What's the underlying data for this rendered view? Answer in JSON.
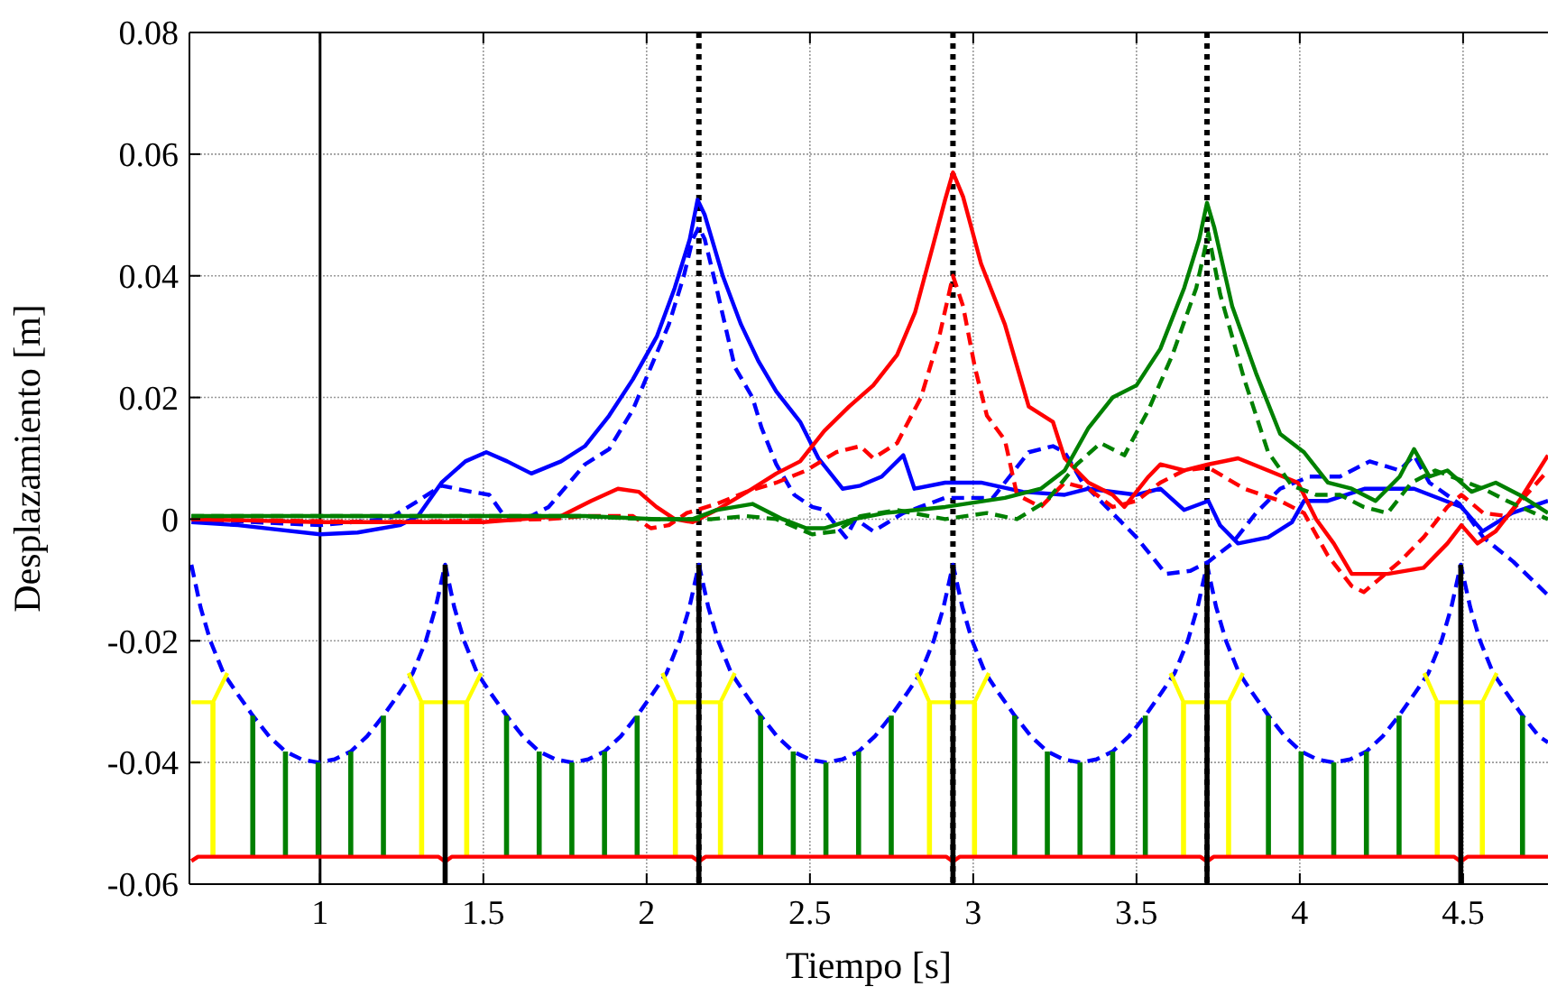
{
  "chart_data": {
    "type": "line",
    "xlabel": "Tiempo [s]",
    "ylabel": "Desplazamiento [m]",
    "xlim": [
      0.6,
      4.76
    ],
    "ylim": [
      -0.06,
      0.08
    ],
    "xticks": [
      1,
      1.5,
      2,
      2.5,
      3,
      3.5,
      4,
      4.5
    ],
    "yticks": [
      -0.06,
      -0.04,
      -0.02,
      0,
      0.02,
      0.04,
      0.06,
      0.08
    ],
    "grid": true,
    "marker": "none",
    "ref_lines": [
      {
        "axis": "x",
        "value": 1,
        "color": "#000000",
        "line_style": "solid"
      },
      {
        "axis": "x",
        "value": 2.16,
        "color": "#000000",
        "line_style": "dotted"
      },
      {
        "axis": "x",
        "value": 2.938,
        "color": "#000000",
        "line_style": "dotted"
      },
      {
        "axis": "x",
        "value": 3.716,
        "color": "#000000",
        "line_style": "dotted"
      }
    ],
    "series": [
      {
        "color": "#0000ff",
        "line_style": "solid",
        "x": [
          0.606,
          0.749,
          1.0,
          1.115,
          1.244,
          1.3,
          1.372,
          1.445,
          1.509,
          1.573,
          1.647,
          1.738,
          1.811,
          1.885,
          1.958,
          2.031,
          2.086,
          2.132,
          2.156,
          2.178,
          2.233,
          2.289,
          2.342,
          2.397,
          2.47,
          2.526,
          2.6,
          2.654,
          2.72,
          2.786,
          2.82,
          2.914,
          3.024,
          3.152,
          3.28,
          3.353,
          3.5,
          3.573,
          3.646,
          3.72,
          3.756,
          3.811,
          3.903,
          3.976,
          4.013,
          4.086,
          4.2,
          4.35,
          4.495,
          4.56,
          4.65,
          4.76
        ],
        "values": [
          -0.0005,
          -0.001,
          -0.0025,
          -0.0022,
          -0.001,
          0.0005,
          0.006,
          0.0095,
          0.011,
          0.0095,
          0.0075,
          0.0095,
          0.012,
          0.017,
          0.023,
          0.03,
          0.038,
          0.046,
          0.0525,
          0.05,
          0.04,
          0.032,
          0.026,
          0.021,
          0.016,
          0.01,
          0.005,
          0.0055,
          0.007,
          0.0105,
          0.005,
          0.006,
          0.006,
          0.0045,
          0.004,
          0.005,
          0.004,
          0.005,
          0.0015,
          0.003,
          -0.001,
          -0.004,
          -0.003,
          -0.0005,
          0.003,
          0.003,
          0.005,
          0.005,
          0.002,
          -0.002,
          0.001,
          0.003
        ]
      },
      {
        "color": "#0000ff",
        "line_style": "dashed",
        "x": [
          0.606,
          1.0,
          1.2,
          1.225,
          1.3,
          1.372,
          1.463,
          1.518,
          1.564,
          1.628,
          1.7,
          1.811,
          1.885,
          1.958,
          2.013,
          2.068,
          2.114,
          2.141,
          2.16,
          2.178,
          2.214,
          2.27,
          2.324,
          2.352,
          2.397,
          2.452,
          2.507,
          2.544,
          2.58,
          2.61,
          2.64,
          2.694,
          2.786,
          2.914,
          3.06,
          3.17,
          3.244,
          3.28,
          3.335,
          3.408,
          3.5,
          3.59,
          3.665,
          3.72,
          3.793,
          3.866,
          3.94,
          4.03,
          4.123,
          4.214,
          4.306,
          4.35,
          4.397,
          4.489,
          4.562,
          4.654,
          4.76
        ],
        "values": [
          0,
          -0.001,
          0,
          0.0005,
          0.003,
          0.0055,
          0.0045,
          0.004,
          0.0005,
          0,
          0.002,
          0.009,
          0.0115,
          0.018,
          0.025,
          0.032,
          0.04,
          0.046,
          0.048,
          0.046,
          0.038,
          0.025,
          0.02,
          0.015,
          0.009,
          0.004,
          0.002,
          0.0015,
          -0.001,
          -0.003,
          0,
          -0.002,
          0.001,
          0.0035,
          0.0035,
          0.011,
          0.012,
          0.011,
          0.006,
          0.002,
          -0.003,
          -0.009,
          -0.0085,
          -0.007,
          -0.004,
          0.001,
          0.005,
          0.007,
          0.007,
          0.0095,
          0.008,
          0.0105,
          0.006,
          0.0025,
          -0.003,
          -0.007,
          -0.0125
        ]
      },
      {
        "color": "#ff0000",
        "line_style": "solid",
        "x": [
          0.606,
          1.0,
          1.5,
          1.738,
          1.83,
          1.912,
          1.976,
          2.03,
          2.086,
          2.141,
          2.214,
          2.324,
          2.397,
          2.47,
          2.544,
          2.62,
          2.694,
          2.767,
          2.822,
          2.877,
          2.914,
          2.938,
          2.969,
          3.024,
          3.097,
          3.17,
          3.244,
          3.28,
          3.353,
          3.427,
          3.463,
          3.537,
          3.573,
          3.646,
          3.72,
          3.811,
          3.903,
          3.994,
          4.05,
          4.104,
          4.159,
          4.269,
          4.379,
          4.452,
          4.495,
          4.544,
          4.6,
          4.672,
          4.76
        ],
        "values": [
          0,
          -0.0005,
          -0.0005,
          0.0005,
          0.003,
          0.005,
          0.0045,
          0.002,
          0,
          -0.0005,
          0.0015,
          0.005,
          0.0075,
          0.0095,
          0.0145,
          0.0185,
          0.022,
          0.027,
          0.034,
          0.045,
          0.0525,
          0.057,
          0.053,
          0.042,
          0.032,
          0.0185,
          0.016,
          0.01,
          0.006,
          0.004,
          0.002,
          0.007,
          0.009,
          0.008,
          0.009,
          0.01,
          0.008,
          0.006,
          0,
          -0.004,
          -0.009,
          -0.009,
          -0.008,
          -0.004,
          -0.001,
          -0.004,
          -0.002,
          0.003,
          0.0105
        ]
      },
      {
        "color": "#ff0000",
        "line_style": "dashed",
        "x": [
          0.606,
          1.2,
          1.7,
          1.811,
          1.958,
          2.013,
          2.068,
          2.123,
          2.214,
          2.306,
          2.397,
          2.489,
          2.58,
          2.654,
          2.694,
          2.767,
          2.84,
          2.896,
          2.938,
          2.969,
          3.005,
          3.042,
          3.097,
          3.134,
          3.207,
          3.28,
          3.353,
          3.427,
          3.5,
          3.573,
          3.646,
          3.72,
          3.83,
          3.94,
          4.013,
          4.086,
          4.159,
          4.196,
          4.306,
          4.379,
          4.452,
          4.495,
          4.562,
          4.635,
          4.76
        ],
        "values": [
          0,
          -0.0005,
          0,
          0.0005,
          0.0005,
          -0.0015,
          -0.001,
          0.001,
          0.0025,
          0.0045,
          0.006,
          0.008,
          0.011,
          0.012,
          0.01,
          0.0125,
          0.02,
          0.03,
          0.04,
          0.035,
          0.025,
          0.017,
          0.013,
          0.004,
          0.002,
          0.006,
          0.005,
          0.002,
          0.003,
          0.006,
          0.008,
          0.0085,
          0.005,
          0.003,
          0.001,
          -0.006,
          -0.011,
          -0.012,
          -0.007,
          -0.003,
          0.002,
          0.004,
          0.001,
          0.0005,
          0.008
        ]
      },
      {
        "color": "#008000",
        "line_style": "solid",
        "x": [
          0.606,
          1.0,
          1.7,
          1.811,
          2.031,
          2.141,
          2.214,
          2.324,
          2.416,
          2.489,
          2.544,
          2.635,
          2.731,
          2.914,
          3.097,
          3.207,
          3.28,
          3.353,
          3.427,
          3.5,
          3.573,
          3.646,
          3.692,
          3.716,
          3.738,
          3.793,
          3.866,
          3.94,
          4.013,
          4.086,
          4.159,
          4.232,
          4.306,
          4.35,
          4.397,
          4.452,
          4.526,
          4.6,
          4.672,
          4.76
        ],
        "values": [
          0.0005,
          0.0005,
          0.0005,
          0.0005,
          0,
          0,
          0.0015,
          0.0025,
          0,
          -0.0015,
          -0.0015,
          0,
          0.001,
          0.002,
          0.0035,
          0.005,
          0.008,
          0.015,
          0.02,
          0.022,
          0.028,
          0.038,
          0.046,
          0.052,
          0.048,
          0.035,
          0.024,
          0.014,
          0.011,
          0.006,
          0.005,
          0.003,
          0.007,
          0.0115,
          0.007,
          0.008,
          0.0045,
          0.006,
          0.004,
          0.001
        ]
      },
      {
        "color": "#008000",
        "line_style": "dashed",
        "x": [
          0.606,
          1.8,
          2.0,
          2.2,
          2.306,
          2.397,
          2.507,
          2.58,
          2.654,
          2.767,
          2.914,
          3.042,
          3.134,
          3.225,
          3.317,
          3.39,
          3.463,
          3.537,
          3.61,
          3.683,
          3.72,
          3.756,
          3.83,
          3.903,
          3.976,
          4.05,
          4.123,
          4.196,
          4.269,
          4.342,
          4.415,
          4.489,
          4.562,
          4.635,
          4.76
        ],
        "values": [
          0.0005,
          0.0005,
          0,
          0,
          0.0005,
          0,
          -0.0025,
          -0.002,
          0.0005,
          0.0015,
          0,
          0.001,
          0,
          0.003,
          0.009,
          0.0125,
          0.0105,
          0.018,
          0.027,
          0.038,
          0.047,
          0.037,
          0.023,
          0.011,
          0.0055,
          0.004,
          0.004,
          0.002,
          0.001,
          0.006,
          0.008,
          0.0065,
          0.005,
          0.003,
          0
        ]
      },
      {
        "color": "#0000ff",
        "line_style": "dashed",
        "x": [
          0.606,
          0.634,
          0.664,
          0.704,
          0.744,
          0.794,
          0.844,
          0.894,
          0.944,
          0.994,
          1.044,
          1.094,
          1.144,
          1.194,
          1.244,
          1.284,
          1.324,
          1.354,
          1.383,
          1.411,
          1.441,
          1.481,
          1.521,
          1.571,
          1.621,
          1.671,
          1.721,
          1.771,
          1.821,
          1.871,
          1.921,
          1.971,
          2.021,
          2.061,
          2.101,
          2.131,
          2.16,
          2.189,
          2.219,
          2.259,
          2.299,
          2.349,
          2.399,
          2.449,
          2.499,
          2.549,
          2.599,
          2.649,
          2.699,
          2.749,
          2.799,
          2.839,
          2.879,
          2.909,
          2.938,
          2.967,
          2.997,
          3.037,
          3.077,
          3.127,
          3.177,
          3.227,
          3.277,
          3.327,
          3.377,
          3.427,
          3.477,
          3.527,
          3.577,
          3.617,
          3.657,
          3.687,
          3.716,
          3.744,
          3.774,
          3.814,
          3.854,
          3.904,
          3.954,
          4.004,
          4.054,
          4.104,
          4.154,
          4.204,
          4.254,
          4.304,
          4.354,
          4.394,
          4.434,
          4.464,
          4.493,
          4.522,
          4.552,
          4.592,
          4.632,
          4.682,
          4.732,
          4.76
        ],
        "values": [
          -0.0075,
          -0.0145,
          -0.02,
          -0.0253,
          -0.0285,
          -0.0323,
          -0.0357,
          -0.0382,
          -0.0395,
          -0.04,
          -0.0395,
          -0.0382,
          -0.0357,
          -0.0323,
          -0.0285,
          -0.0253,
          -0.02,
          -0.0145,
          -0.0075,
          -0.0145,
          -0.02,
          -0.0253,
          -0.0285,
          -0.0323,
          -0.0357,
          -0.0382,
          -0.0395,
          -0.04,
          -0.0395,
          -0.0382,
          -0.0357,
          -0.0323,
          -0.0285,
          -0.0253,
          -0.02,
          -0.0145,
          -0.0075,
          -0.0145,
          -0.02,
          -0.0253,
          -0.0285,
          -0.0323,
          -0.0357,
          -0.0382,
          -0.0395,
          -0.04,
          -0.0395,
          -0.0382,
          -0.0357,
          -0.0323,
          -0.0285,
          -0.0253,
          -0.02,
          -0.0145,
          -0.0075,
          -0.0145,
          -0.02,
          -0.0253,
          -0.0285,
          -0.0323,
          -0.0357,
          -0.0382,
          -0.0395,
          -0.04,
          -0.0395,
          -0.0382,
          -0.0357,
          -0.0323,
          -0.0285,
          -0.0253,
          -0.02,
          -0.0145,
          -0.0075,
          -0.0145,
          -0.02,
          -0.0253,
          -0.0285,
          -0.0323,
          -0.0357,
          -0.0382,
          -0.0395,
          -0.04,
          -0.0395,
          -0.0382,
          -0.0357,
          -0.0323,
          -0.0285,
          -0.0253,
          -0.02,
          -0.0145,
          -0.0075,
          -0.0145,
          -0.02,
          -0.0253,
          -0.0285,
          -0.0323,
          -0.0357,
          -0.0367
        ]
      },
      {
        "type": "bar",
        "color": "#008000",
        "base": [
          -0.0555,
          -0.0555,
          -0.0555,
          -0.0555,
          -0.0555,
          -0.0555,
          -0.0555,
          -0.0555,
          -0.0555,
          -0.0555,
          -0.0555,
          -0.0555,
          -0.0555,
          -0.0555,
          -0.0555,
          -0.0555,
          -0.0555,
          -0.0555,
          -0.0555,
          -0.0555,
          -0.0555,
          -0.0555,
          -0.0555,
          -0.0555,
          -0.0555,
          -0.0555
        ],
        "x": [
          0.794,
          0.894,
          0.994,
          1.094,
          1.194,
          1.571,
          1.671,
          1.771,
          1.871,
          1.971,
          2.349,
          2.449,
          2.549,
          2.649,
          2.749,
          3.127,
          3.227,
          3.327,
          3.427,
          3.527,
          3.904,
          4.004,
          4.104,
          4.204,
          4.304,
          4.682
        ],
        "values": [
          0.0232,
          0.0173,
          0.0155,
          0.0173,
          0.0232,
          0.0232,
          0.0173,
          0.0155,
          0.0173,
          0.0232,
          0.0232,
          0.0173,
          0.0155,
          0.0173,
          0.0232,
          0.0232,
          0.0173,
          0.0155,
          0.0173,
          0.0232,
          0.0232,
          0.0173,
          0.0155,
          0.0173,
          0.0232,
          0.0232
        ]
      },
      {
        "type": "bar",
        "color": "#ffff00",
        "base": [
          -0.0555,
          -0.0555,
          -0.0555,
          -0.0555,
          -0.0555,
          -0.0555,
          -0.0555,
          -0.0555,
          -0.0555,
          -0.0555,
          -0.0555
        ],
        "x": [
          0.672,
          1.311,
          1.449,
          2.088,
          2.226,
          2.866,
          3.004,
          3.644,
          3.782,
          4.421,
          4.559
        ],
        "values": [
          0.0254,
          0.0254,
          0.0254,
          0.0254,
          0.0254,
          0.0254,
          0.0254,
          0.0254,
          0.0254,
          0.0254,
          0.0254
        ]
      },
      {
        "color": "#ffff00",
        "line_style": "solid",
        "x": [
          0.606,
          0.672,
          0.716,
          0.73,
          1.271,
          1.311,
          1.449,
          1.493,
          1.5,
          2.048,
          2.088,
          2.226,
          2.27,
          2.28,
          2.826,
          2.866,
          3.004,
          3.048,
          3.06,
          3.604,
          3.644,
          3.782,
          3.826,
          3.84,
          4.381,
          4.421,
          4.559,
          4.603
        ],
        "values": [
          -0.0301,
          -0.0301,
          -0.0253,
          null,
          -0.0253,
          -0.0301,
          -0.0301,
          -0.0253,
          null,
          -0.0253,
          -0.0301,
          -0.0301,
          -0.0253,
          null,
          -0.0253,
          -0.0301,
          -0.0301,
          -0.0253,
          null,
          -0.0253,
          -0.0301,
          -0.0301,
          -0.0253,
          null,
          -0.0253,
          -0.0301,
          -0.0301,
          -0.0253
        ]
      },
      {
        "color": "#ff0000",
        "line_style": "solid",
        "x": [
          0.606,
          0.626,
          1.363,
          1.383,
          1.403,
          2.14,
          2.16,
          2.18,
          2.918,
          2.938,
          2.958,
          3.696,
          3.716,
          3.736,
          4.473,
          4.493,
          4.513,
          4.76
        ],
        "values": [
          -0.0562,
          -0.0555,
          -0.0555,
          -0.0563,
          -0.0555,
          -0.0555,
          -0.0563,
          -0.0555,
          -0.0555,
          -0.0563,
          -0.0555,
          -0.0555,
          -0.0563,
          -0.0555,
          -0.0555,
          -0.0563,
          -0.0555,
          -0.0555
        ]
      },
      {
        "type": "bar",
        "color": "#000000",
        "base": [
          -0.06,
          -0.06,
          -0.06,
          -0.06,
          -0.06
        ],
        "x": [
          1.383,
          2.16,
          2.938,
          3.716,
          4.493
        ],
        "values": [
          0.0525,
          0.0525,
          0.0525,
          0.0525,
          0.0525
        ]
      }
    ]
  }
}
